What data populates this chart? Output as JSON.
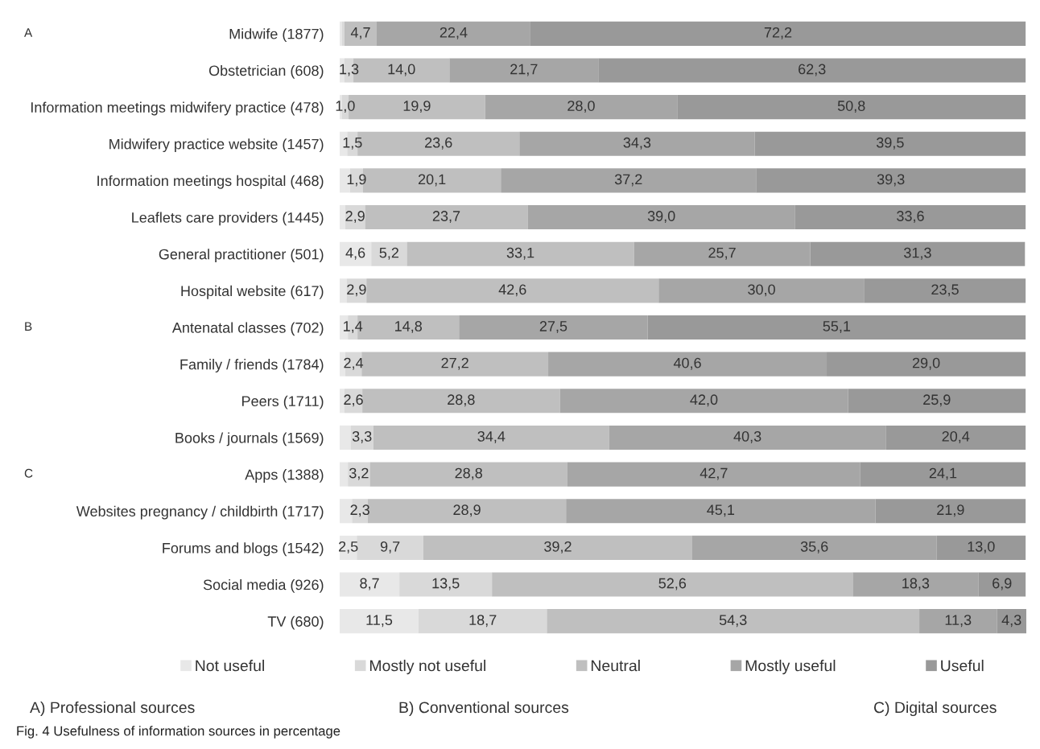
{
  "chart_data": {
    "type": "bar",
    "orientation": "horizontal",
    "stacked": true,
    "tick_labels": "y",
    "grid": false,
    "legend": "bottom",
    "categories": [
      "Midwife (1877)",
      "Obstetrician (608)",
      "Information meetings midwifery practice (478)",
      "Midwifery practice website (1457)",
      "Information meetings hospital (468)",
      "Leaflets care providers (1445)",
      "General practitioner (501)",
      "Hospital website (617)",
      "Antenatal classes (702)",
      "Family / friends (1784)",
      "Peers (1711)",
      "Books / journals (1569)",
      "Apps (1388)",
      "Websites pregnancy / childbirth (1717)",
      "Forums and blogs (1542)",
      "Social media (926)",
      "TV (680)"
    ],
    "series": [
      {
        "name": "Not useful",
        "color": "#e8e8e8",
        "values": [
          0.3,
          0.7,
          0.3,
          1.1,
          1.5,
          0.8,
          4.6,
          1.0,
          1.2,
          0.8,
          0.7,
          1.6,
          1.2,
          1.8,
          2.5,
          8.7,
          11.5
        ],
        "value_labels": [
          null,
          null,
          null,
          null,
          null,
          null,
          "4,6",
          null,
          null,
          null,
          null,
          null,
          null,
          null,
          "2,5",
          "8,7",
          "11,5"
        ]
      },
      {
        "name": "Mostly not useful",
        "color": "#d9d9d9",
        "values": [
          0.4,
          1.3,
          1.0,
          1.5,
          1.9,
          2.9,
          5.2,
          2.9,
          1.4,
          2.4,
          2.6,
          3.3,
          3.2,
          2.3,
          9.7,
          13.5,
          18.7
        ],
        "value_labels": [
          null,
          "1,3",
          "1,0",
          "1,5",
          "1,9",
          "2,9",
          "5,2",
          "2,9",
          "1,4",
          "2,4",
          "2,6",
          "3,3",
          "3,2",
          "2,3",
          "9,7",
          "13,5",
          "18,7"
        ]
      },
      {
        "name": "Neutral",
        "color": "#bfbfbf",
        "values": [
          4.7,
          14.0,
          19.9,
          23.6,
          20.1,
          23.7,
          33.1,
          42.6,
          14.8,
          27.2,
          28.8,
          34.4,
          28.8,
          28.9,
          39.2,
          52.6,
          54.3
        ],
        "value_labels": [
          "4,7",
          "14,0",
          "19,9",
          "23,6",
          "20,1",
          "23,7",
          "33,1",
          "42,6",
          "14,8",
          "27,2",
          "28,8",
          "34,4",
          "28,8",
          "28,9",
          "39,2",
          "52,6",
          "54,3"
        ]
      },
      {
        "name": "Mostly useful",
        "color": "#a6a6a6",
        "values": [
          22.4,
          21.7,
          28.0,
          34.3,
          37.2,
          39.0,
          25.7,
          30.0,
          27.5,
          40.6,
          42.0,
          40.3,
          42.7,
          45.1,
          35.6,
          18.3,
          11.3
        ],
        "value_labels": [
          "22,4",
          "21,7",
          "28,0",
          "34,3",
          "37,2",
          "39,0",
          "25,7",
          "30,0",
          "27,5",
          "40,6",
          "42,0",
          "40,3",
          "42,7",
          "45,1",
          "35,6",
          "18,3",
          "11,3"
        ]
      },
      {
        "name": "Useful",
        "color": "#999999",
        "values": [
          72.2,
          62.3,
          50.8,
          39.5,
          39.3,
          33.6,
          31.3,
          23.5,
          55.1,
          29.0,
          25.9,
          20.4,
          24.1,
          21.9,
          13.0,
          6.9,
          4.3
        ],
        "value_labels": [
          "72,2",
          "62,3",
          "50,8",
          "39,5",
          "39,3",
          "33,6",
          "31,3",
          "23,5",
          "55,1",
          "29,0",
          "25,9",
          "20,4",
          "24,1",
          "21,9",
          "13,0",
          "6,9",
          "4,3"
        ]
      }
    ],
    "annotations": [
      "A",
      "B",
      "C",
      "A) Professional sources",
      "B) Conventional sources",
      "C) Digital sources",
      "Fig. 4 Usefulness of information sources in percentage"
    ]
  }
}
